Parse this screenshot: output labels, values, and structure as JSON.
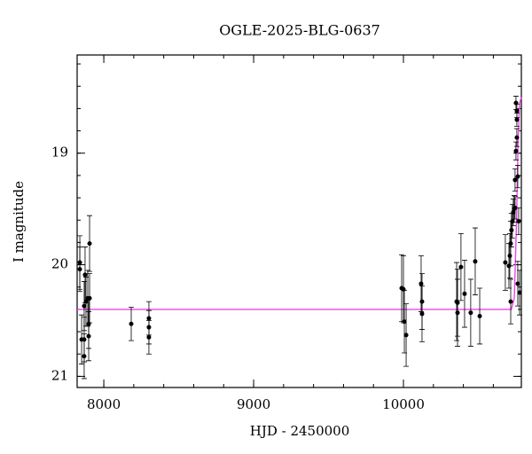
{
  "chart_data": {
    "type": "scatter",
    "title": "OGLE-2025-BLG-0637",
    "x_label": "HJD - 2450000",
    "y_label": "I magnitude",
    "xlim": [
      7822,
      10787
    ],
    "ylim": [
      21.1,
      18.12
    ],
    "xticks": [
      8000,
      9000,
      10000
    ],
    "yticks": [
      19,
      20,
      21
    ],
    "points": {
      "color": "#000000",
      "x": [
        7840,
        7840,
        7852,
        7869,
        7869,
        7875,
        7881,
        7869,
        7893,
        7899,
        7899,
        7905,
        7905,
        8183,
        8301,
        8301,
        8301,
        9988,
        10000,
        10006,
        10018,
        10118,
        10124,
        10124,
        10355,
        10361,
        10361,
        10384,
        10408,
        10449,
        10479,
        10509,
        10680,
        10704,
        10710,
        10716,
        10716,
        10721,
        10727,
        10733,
        10739,
        10745,
        10745,
        10751,
        10751,
        10757,
        10757,
        10763,
        10763,
        10769,
        10775,
        10757
      ],
      "values": [
        19.98,
        20.04,
        20.67,
        20.37,
        20.67,
        20.09,
        20.33,
        20.82,
        20.3,
        20.64,
        20.53,
        19.81,
        20.3,
        20.53,
        20.48,
        20.56,
        20.65,
        20.21,
        20.22,
        20.51,
        20.63,
        20.17,
        20.33,
        20.44,
        20.33,
        20.43,
        20.34,
        20.02,
        20.26,
        20.43,
        19.97,
        20.46,
        19.98,
        20.01,
        19.92,
        19.81,
        20.33,
        19.69,
        19.61,
        19.53,
        19.5,
        19.24,
        19.49,
        18.98,
        18.55,
        18.62,
        18.86,
        19.21,
        20.17,
        19.61,
        20.25,
        18.7
      ],
      "errors": [
        0.24,
        0.2,
        0.22,
        0.22,
        0.2,
        0.25,
        0.22,
        0.2,
        0.25,
        0.22,
        0.22,
        0.25,
        0.22,
        0.15,
        0.15,
        0.15,
        0.15,
        0.3,
        0.3,
        0.28,
        0.28,
        0.25,
        0.25,
        0.25,
        0.35,
        0.3,
        0.3,
        0.3,
        0.3,
        0.3,
        0.3,
        0.25,
        0.25,
        0.2,
        0.2,
        0.2,
        0.2,
        0.15,
        0.15,
        0.12,
        0.12,
        0.1,
        0.1,
        0.08,
        0.06,
        0.06,
        0.08,
        0.1,
        0.2,
        0.12,
        0.2,
        0.06
      ]
    },
    "model": {
      "color": "#ee44ee",
      "x": [
        7822,
        10720,
        10740,
        10755,
        10765,
        10775,
        10787
      ],
      "values": [
        20.4,
        20.4,
        20.3,
        19.6,
        18.9,
        18.55,
        18.5
      ]
    }
  }
}
